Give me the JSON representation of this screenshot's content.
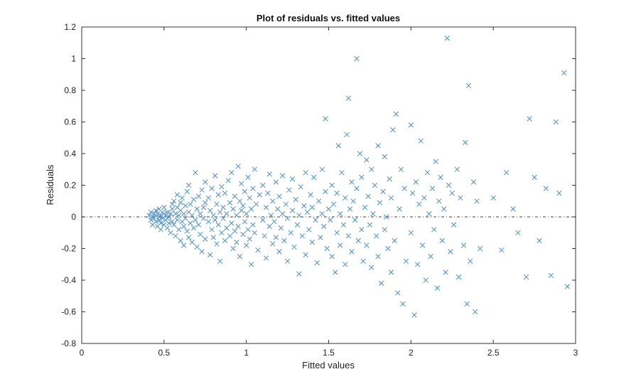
{
  "figure": {
    "background": "#ffffff",
    "axes_color": "#333333"
  },
  "chart_data": {
    "type": "scatter",
    "title": "Plot of residuals vs. fitted values",
    "xlabel": "Fitted values",
    "ylabel": "Residuals",
    "xlim": [
      0,
      3
    ],
    "ylim": [
      -0.8,
      1.2
    ],
    "xticks": [
      0,
      0.5,
      1,
      1.5,
      2,
      2.5,
      3
    ],
    "xtick_labels": [
      "0",
      "0.5",
      "1",
      "1.5",
      "2",
      "2.5",
      "3"
    ],
    "yticks": [
      -0.8,
      -0.6,
      -0.4,
      -0.2,
      0,
      0.2,
      0.4,
      0.6,
      0.8,
      1,
      1.2
    ],
    "ytick_labels": [
      "-0.8",
      "-0.6",
      "-0.4",
      "-0.2",
      "0",
      "0.2",
      "0.4",
      "0.6",
      "0.8",
      "1",
      "1.2"
    ],
    "legend": "none",
    "grid": false,
    "marker": "x",
    "marker_color": "#4a8ec2",
    "zero_line": {
      "y": 0,
      "style": "dash-dot",
      "color": "#000000"
    },
    "points": [
      [
        0.41,
        0.01
      ],
      [
        0.42,
        -0.02
      ],
      [
        0.42,
        0.03
      ],
      [
        0.43,
        0.0
      ],
      [
        0.43,
        -0.05
      ],
      [
        0.44,
        0.02
      ],
      [
        0.44,
        -0.01
      ],
      [
        0.45,
        0.04
      ],
      [
        0.45,
        -0.03
      ],
      [
        0.45,
        0.01
      ],
      [
        0.46,
        -0.06
      ],
      [
        0.46,
        0.02
      ],
      [
        0.47,
        0.0
      ],
      [
        0.47,
        -0.02
      ],
      [
        0.47,
        0.05
      ],
      [
        0.48,
        -0.04
      ],
      [
        0.48,
        0.01
      ],
      [
        0.48,
        -0.08
      ],
      [
        0.49,
        0.03
      ],
      [
        0.49,
        -0.01
      ],
      [
        0.5,
        0.02
      ],
      [
        0.5,
        -0.05
      ],
      [
        0.5,
        0.06
      ],
      [
        0.51,
        -0.02
      ],
      [
        0.51,
        0.01
      ],
      [
        0.52,
        -0.07
      ],
      [
        0.52,
        0.03
      ],
      [
        0.52,
        -0.01
      ],
      [
        0.53,
        0.0
      ],
      [
        0.53,
        -0.04
      ],
      [
        0.54,
        0.02
      ],
      [
        0.54,
        -0.1
      ],
      [
        0.55,
        0.05
      ],
      [
        0.55,
        -0.03
      ],
      [
        0.55,
        0.08
      ],
      [
        0.56,
        0.1
      ],
      [
        0.56,
        -0.05
      ],
      [
        0.57,
        0.02
      ],
      [
        0.57,
        -0.12
      ],
      [
        0.58,
        0.06
      ],
      [
        0.58,
        -0.02
      ],
      [
        0.58,
        0.14
      ],
      [
        0.59,
        -0.08
      ],
      [
        0.59,
        0.01
      ],
      [
        0.6,
        0.04
      ],
      [
        0.6,
        -0.15
      ],
      [
        0.6,
        0.09
      ],
      [
        0.61,
        -0.03
      ],
      [
        0.61,
        0.12
      ],
      [
        0.62,
        -0.06
      ],
      [
        0.62,
        0.02
      ],
      [
        0.62,
        -0.18
      ],
      [
        0.63,
        0.07
      ],
      [
        0.63,
        -0.01
      ],
      [
        0.64,
        0.16
      ],
      [
        0.64,
        -0.09
      ],
      [
        0.65,
        0.03
      ],
      [
        0.65,
        -0.13
      ],
      [
        0.65,
        0.2
      ],
      [
        0.66,
        -0.04
      ],
      [
        0.66,
        0.08
      ],
      [
        0.67,
        -0.16
      ],
      [
        0.67,
        0.01
      ],
      [
        0.68,
        0.11
      ],
      [
        0.68,
        -0.07
      ],
      [
        0.69,
        0.28
      ],
      [
        0.69,
        -0.02
      ],
      [
        0.7,
        0.05
      ],
      [
        0.7,
        -0.19
      ],
      [
        0.71,
        0.13
      ],
      [
        0.71,
        -0.05
      ],
      [
        0.72,
        0.02
      ],
      [
        0.72,
        -0.11
      ],
      [
        0.73,
        0.17
      ],
      [
        0.73,
        -0.22
      ],
      [
        0.74,
        0.06
      ],
      [
        0.74,
        -0.01
      ],
      [
        0.75,
        0.22
      ],
      [
        0.75,
        -0.14
      ],
      [
        0.75,
        0.09
      ],
      [
        0.77,
        -0.03
      ],
      [
        0.77,
        0.12
      ],
      [
        0.78,
        -0.24
      ],
      [
        0.78,
        0.04
      ],
      [
        0.79,
        0.18
      ],
      [
        0.79,
        -0.08
      ],
      [
        0.8,
        0.01
      ],
      [
        0.8,
        -0.13
      ],
      [
        0.81,
        0.26
      ],
      [
        0.81,
        -0.02
      ],
      [
        0.82,
        0.08
      ],
      [
        0.82,
        -0.17
      ],
      [
        0.83,
        0.14
      ],
      [
        0.83,
        -0.05
      ],
      [
        0.84,
        0.03
      ],
      [
        0.84,
        -0.28
      ],
      [
        0.85,
        0.19
      ],
      [
        0.85,
        -0.1
      ],
      [
        0.86,
        0.06
      ],
      [
        0.86,
        -0.01
      ],
      [
        0.87,
        0.15
      ],
      [
        0.87,
        -0.15
      ],
      [
        0.88,
        0.02
      ],
      [
        0.88,
        -0.07
      ],
      [
        0.89,
        0.23
      ],
      [
        0.9,
        -0.12
      ],
      [
        0.9,
        0.09
      ],
      [
        0.91,
        -0.04
      ],
      [
        0.91,
        0.28
      ],
      [
        0.92,
        -0.2
      ],
      [
        0.92,
        0.05
      ],
      [
        0.93,
        0.13
      ],
      [
        0.93,
        -0.09
      ],
      [
        0.94,
        0.01
      ],
      [
        0.94,
        -0.16
      ],
      [
        0.95,
        0.32
      ],
      [
        0.95,
        -0.06
      ],
      [
        0.96,
        0.1
      ],
      [
        0.96,
        -0.25
      ],
      [
        0.97,
        0.04
      ],
      [
        0.97,
        0.21
      ],
      [
        0.98,
        -0.11
      ],
      [
        0.98,
        0.07
      ],
      [
        0.99,
        -0.03
      ],
      [
        0.99,
        0.16
      ],
      [
        1.0,
        -0.18
      ],
      [
        1.0,
        0.02
      ],
      [
        1.01,
        0.25
      ],
      [
        1.01,
        -0.08
      ],
      [
        1.02,
        0.12
      ],
      [
        1.02,
        -0.14
      ],
      [
        1.03,
        0.05
      ],
      [
        1.03,
        -0.3
      ],
      [
        1.04,
        0.18
      ],
      [
        1.04,
        -0.05
      ],
      [
        1.05,
        0.3
      ],
      [
        1.05,
        -0.1
      ],
      [
        1.06,
        0.08
      ],
      [
        1.07,
        -0.21
      ],
      [
        1.08,
        0.14
      ],
      [
        1.1,
        -0.02
      ],
      [
        1.1,
        0.2
      ],
      [
        1.11,
        -0.12
      ],
      [
        1.12,
        0.06
      ],
      [
        1.12,
        -0.26
      ],
      [
        1.13,
        0.15
      ],
      [
        1.14,
        -0.06
      ],
      [
        1.14,
        0.27
      ],
      [
        1.15,
        0.01
      ],
      [
        1.16,
        -0.17
      ],
      [
        1.16,
        0.1
      ],
      [
        1.17,
        -0.03
      ],
      [
        1.18,
        0.22
      ],
      [
        1.18,
        -0.13
      ],
      [
        1.19,
        0.05
      ],
      [
        1.2,
        -0.22
      ],
      [
        1.2,
        0.13
      ],
      [
        1.21,
        -0.07
      ],
      [
        1.22,
        0.02
      ],
      [
        1.22,
        0.26
      ],
      [
        1.23,
        -0.15
      ],
      [
        1.24,
        0.08
      ],
      [
        1.25,
        -0.01
      ],
      [
        1.25,
        -0.28
      ],
      [
        1.26,
        0.17
      ],
      [
        1.27,
        -0.1
      ],
      [
        1.28,
        0.04
      ],
      [
        1.28,
        0.24
      ],
      [
        1.29,
        -0.19
      ],
      [
        1.3,
        0.11
      ],
      [
        1.31,
        -0.05
      ],
      [
        1.32,
        0.01
      ],
      [
        1.32,
        -0.36
      ],
      [
        1.33,
        0.19
      ],
      [
        1.34,
        -0.12
      ],
      [
        1.35,
        0.07
      ],
      [
        1.36,
        0.28
      ],
      [
        1.36,
        -0.24
      ],
      [
        1.37,
        0.03
      ],
      [
        1.38,
        -0.08
      ],
      [
        1.39,
        0.14
      ],
      [
        1.4,
        -0.16
      ],
      [
        1.4,
        0.06
      ],
      [
        1.41,
        0.25
      ],
      [
        1.42,
        -0.02
      ],
      [
        1.43,
        -0.29
      ],
      [
        1.44,
        0.1
      ],
      [
        1.45,
        -0.13
      ],
      [
        1.46,
        0.3
      ],
      [
        1.46,
        0.02
      ],
      [
        1.47,
        -0.06
      ],
      [
        1.48,
        0.62
      ],
      [
        1.48,
        0.16
      ],
      [
        1.49,
        -0.2
      ],
      [
        1.5,
        0.05
      ],
      [
        1.51,
        -0.02
      ],
      [
        1.52,
        0.2
      ],
      [
        1.52,
        -0.25
      ],
      [
        1.53,
        0.08
      ],
      [
        1.54,
        -0.35
      ],
      [
        1.55,
        0.15
      ],
      [
        1.55,
        -0.1
      ],
      [
        1.56,
        0.45
      ],
      [
        1.57,
        0.02
      ],
      [
        1.57,
        -0.18
      ],
      [
        1.58,
        0.28
      ],
      [
        1.59,
        -0.05
      ],
      [
        1.6,
        0.12
      ],
      [
        1.6,
        -0.3
      ],
      [
        1.61,
        0.52
      ],
      [
        1.62,
        0.75
      ],
      [
        1.62,
        -0.12
      ],
      [
        1.63,
        0.05
      ],
      [
        1.64,
        0.22
      ],
      [
        1.64,
        -0.22
      ],
      [
        1.65,
        0.1
      ],
      [
        1.66,
        -0.02
      ],
      [
        1.67,
        1.0
      ],
      [
        1.67,
        0.18
      ],
      [
        1.68,
        -0.15
      ],
      [
        1.69,
        0.4
      ],
      [
        1.7,
        -0.08
      ],
      [
        1.7,
        0.25
      ],
      [
        1.71,
        -0.28
      ],
      [
        1.72,
        0.06
      ],
      [
        1.73,
        0.36
      ],
      [
        1.73,
        -0.18
      ],
      [
        1.74,
        0.13
      ],
      [
        1.75,
        -0.05
      ],
      [
        1.76,
        0.3
      ],
      [
        1.76,
        -0.32
      ],
      [
        1.77,
        0.02
      ],
      [
        1.78,
        0.2
      ],
      [
        1.79,
        -0.12
      ],
      [
        1.8,
        0.45
      ],
      [
        1.8,
        -0.25
      ],
      [
        1.81,
        0.09
      ],
      [
        1.82,
        -0.42
      ],
      [
        1.83,
        0.16
      ],
      [
        1.84,
        0.38
      ],
      [
        1.84,
        -0.08
      ],
      [
        1.85,
        0.0
      ],
      [
        1.86,
        -0.2
      ],
      [
        1.87,
        0.24
      ],
      [
        1.88,
        -0.35
      ],
      [
        1.88,
        0.12
      ],
      [
        1.89,
        0.55
      ],
      [
        1.9,
        -0.15
      ],
      [
        1.91,
        0.65
      ],
      [
        1.92,
        -0.48
      ],
      [
        1.93,
        0.05
      ],
      [
        1.94,
        0.3
      ],
      [
        1.95,
        -0.55
      ],
      [
        1.96,
        0.18
      ],
      [
        1.97,
        -0.28
      ],
      [
        2.0,
        0.58
      ],
      [
        2.0,
        -0.1
      ],
      [
        2.01,
        0.15
      ],
      [
        2.02,
        -0.62
      ],
      [
        2.03,
        0.22
      ],
      [
        2.04,
        -0.3
      ],
      [
        2.05,
        0.08
      ],
      [
        2.06,
        0.48
      ],
      [
        2.07,
        -0.18
      ],
      [
        2.08,
        0.12
      ],
      [
        2.09,
        -0.4
      ],
      [
        2.1,
        0.28
      ],
      [
        2.11,
        0.02
      ],
      [
        2.12,
        -0.25
      ],
      [
        2.13,
        0.18
      ],
      [
        2.14,
        -0.08
      ],
      [
        2.15,
        0.35
      ],
      [
        2.16,
        -0.45
      ],
      [
        2.17,
        0.1
      ],
      [
        2.18,
        0.25
      ],
      [
        2.19,
        -0.15
      ],
      [
        2.2,
        0.05
      ],
      [
        2.21,
        -0.35
      ],
      [
        2.22,
        1.13
      ],
      [
        2.23,
        0.2
      ],
      [
        2.24,
        -0.22
      ],
      [
        2.25,
        0.15
      ],
      [
        2.26,
        -0.05
      ],
      [
        2.28,
        0.3
      ],
      [
        2.29,
        -0.38
      ],
      [
        2.3,
        0.12
      ],
      [
        2.32,
        -0.18
      ],
      [
        2.33,
        0.47
      ],
      [
        2.34,
        -0.55
      ],
      [
        2.35,
        0.83
      ],
      [
        2.36,
        -0.28
      ],
      [
        2.38,
        0.22
      ],
      [
        2.39,
        -0.6
      ],
      [
        2.4,
        0.1
      ],
      [
        2.42,
        -0.2
      ],
      [
        2.5,
        0.12
      ],
      [
        2.55,
        -0.21
      ],
      [
        2.58,
        0.28
      ],
      [
        2.62,
        0.05
      ],
      [
        2.65,
        -0.1
      ],
      [
        2.7,
        -0.38
      ],
      [
        2.72,
        0.62
      ],
      [
        2.75,
        0.25
      ],
      [
        2.78,
        -0.15
      ],
      [
        2.82,
        0.18
      ],
      [
        2.85,
        -0.37
      ],
      [
        2.88,
        0.6
      ],
      [
        2.9,
        0.15
      ],
      [
        2.93,
        0.91
      ],
      [
        2.95,
        -0.44
      ]
    ]
  }
}
